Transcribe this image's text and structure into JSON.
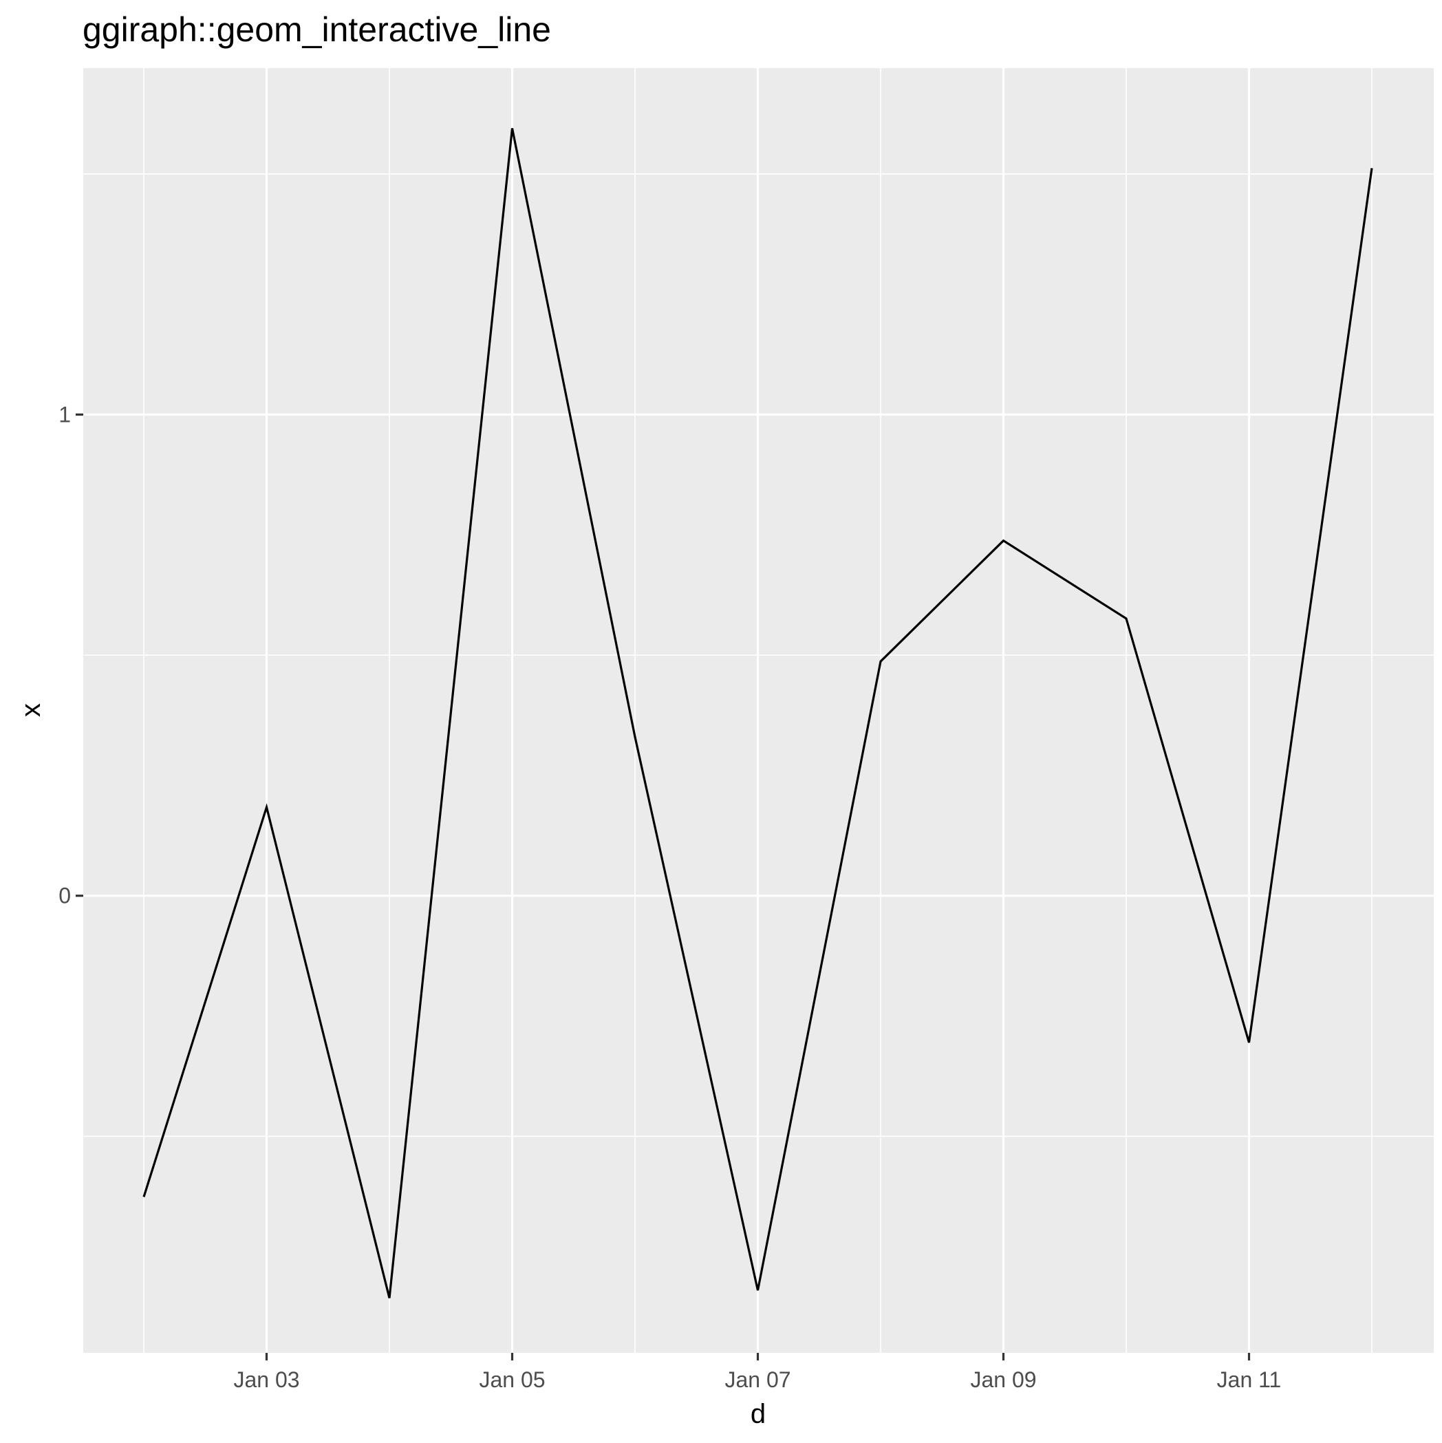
{
  "chart_data": {
    "type": "line",
    "title": "ggiraph::geom_interactive_line",
    "xlabel": "d",
    "ylabel": "x",
    "x": [
      "Jan 02",
      "Jan 03",
      "Jan 04",
      "Jan 05",
      "Jan 06",
      "Jan 07",
      "Jan 08",
      "Jan 09",
      "Jan 10",
      "Jan 11",
      "Jan 12"
    ],
    "series": [
      {
        "values": [
          -0.626,
          0.184,
          -0.836,
          1.595,
          0.33,
          -0.82,
          0.487,
          0.738,
          0.576,
          -0.305,
          1.512
        ]
      }
    ],
    "x_ticks": [
      "Jan 03",
      "Jan 05",
      "Jan 07",
      "Jan 09",
      "Jan 11"
    ],
    "y_ticks": [
      0,
      1
    ],
    "ylim": [
      -0.95,
      1.72
    ],
    "grid": true,
    "legend": "none",
    "colors": {
      "panel_background": "#EBEBEB",
      "grid_line": "#FFFFFF",
      "series_line": "#000000",
      "tick_text": "#4D4D4D",
      "axis_tick": "#333333"
    }
  }
}
